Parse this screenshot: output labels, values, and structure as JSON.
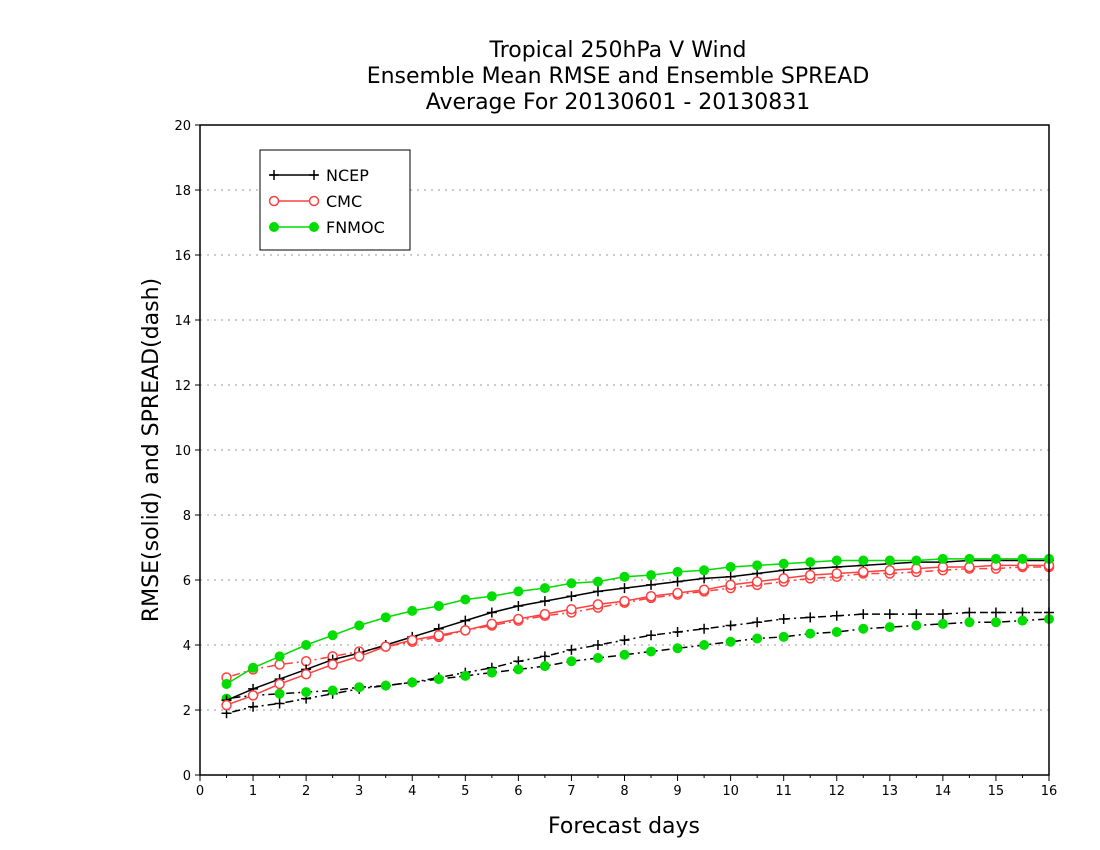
{
  "chart_data": {
    "type": "line",
    "title_lines": [
      "Tropical 250hPa V Wind",
      "Ensemble Mean RMSE and Ensemble SPREAD",
      "Average For 20130601 - 20130831"
    ],
    "xlabel": "Forecast days",
    "ylabel": "RMSE(solid) and SPREAD(dash)",
    "xlim": [
      0,
      16
    ],
    "ylim": [
      0,
      20
    ],
    "x_ticks": [
      "0",
      "1",
      "2",
      "3",
      "4",
      "5",
      "6",
      "7",
      "8",
      "9",
      "10",
      "11",
      "12",
      "13",
      "14",
      "15",
      "16"
    ],
    "y_ticks": [
      "0",
      "2",
      "4",
      "6",
      "8",
      "10",
      "12",
      "14",
      "16",
      "18",
      "20"
    ],
    "grid": "horizontal dotted",
    "legend_position": "top-left",
    "x": [
      0.5,
      1,
      1.5,
      2,
      2.5,
      3,
      3.5,
      4,
      4.5,
      5,
      5.5,
      6,
      6.5,
      7,
      7.5,
      8,
      8.5,
      9,
      9.5,
      10,
      10.5,
      11,
      11.5,
      12,
      12.5,
      13,
      13.5,
      14,
      14.5,
      15,
      15.5,
      16
    ],
    "series": [
      {
        "name": "NCEP",
        "color": "#000000",
        "marker": "plus",
        "rmse": [
          2.3,
          2.65,
          2.95,
          3.25,
          3.55,
          3.75,
          4.0,
          4.25,
          4.5,
          4.75,
          5.0,
          5.2,
          5.35,
          5.5,
          5.65,
          5.75,
          5.85,
          5.95,
          6.05,
          6.1,
          6.2,
          6.3,
          6.35,
          6.4,
          6.45,
          6.5,
          6.55,
          6.55,
          6.6,
          6.6,
          6.6,
          6.6
        ],
        "spread": [
          1.9,
          2.1,
          2.2,
          2.35,
          2.5,
          2.65,
          2.75,
          2.85,
          3.0,
          3.15,
          3.3,
          3.5,
          3.65,
          3.85,
          4.0,
          4.15,
          4.3,
          4.4,
          4.5,
          4.6,
          4.7,
          4.8,
          4.85,
          4.9,
          4.95,
          4.95,
          4.95,
          4.95,
          5.0,
          5.0,
          5.0,
          5.0
        ]
      },
      {
        "name": "CMC",
        "color": "#ff4040",
        "marker": "open-circle",
        "rmse": [
          2.15,
          2.45,
          2.8,
          3.1,
          3.4,
          3.65,
          3.95,
          4.15,
          4.3,
          4.45,
          4.65,
          4.8,
          4.95,
          5.1,
          5.25,
          5.35,
          5.5,
          5.6,
          5.7,
          5.85,
          5.95,
          6.05,
          6.15,
          6.2,
          6.25,
          6.3,
          6.35,
          6.4,
          6.4,
          6.45,
          6.45,
          6.45
        ],
        "spread": [
          3.0,
          3.25,
          3.4,
          3.5,
          3.65,
          3.8,
          3.95,
          4.1,
          4.25,
          4.45,
          4.6,
          4.75,
          4.9,
          5.0,
          5.15,
          5.3,
          5.45,
          5.55,
          5.65,
          5.75,
          5.85,
          5.95,
          6.05,
          6.1,
          6.2,
          6.2,
          6.25,
          6.3,
          6.35,
          6.35,
          6.4,
          6.4
        ]
      },
      {
        "name": "FNMOC",
        "color": "#00dd00",
        "marker": "filled-circle",
        "rmse": [
          2.8,
          3.3,
          3.65,
          4.0,
          4.3,
          4.6,
          4.85,
          5.05,
          5.2,
          5.4,
          5.5,
          5.65,
          5.75,
          5.9,
          5.95,
          6.1,
          6.15,
          6.25,
          6.3,
          6.4,
          6.45,
          6.5,
          6.55,
          6.6,
          6.6,
          6.6,
          6.6,
          6.65,
          6.65,
          6.65,
          6.65,
          6.65
        ],
        "spread": [
          2.35,
          2.45,
          2.5,
          2.55,
          2.6,
          2.7,
          2.75,
          2.85,
          2.95,
          3.05,
          3.15,
          3.25,
          3.35,
          3.5,
          3.6,
          3.7,
          3.8,
          3.9,
          4.0,
          4.1,
          4.2,
          4.25,
          4.35,
          4.4,
          4.5,
          4.55,
          4.6,
          4.65,
          4.7,
          4.7,
          4.75,
          4.8
        ]
      }
    ]
  }
}
